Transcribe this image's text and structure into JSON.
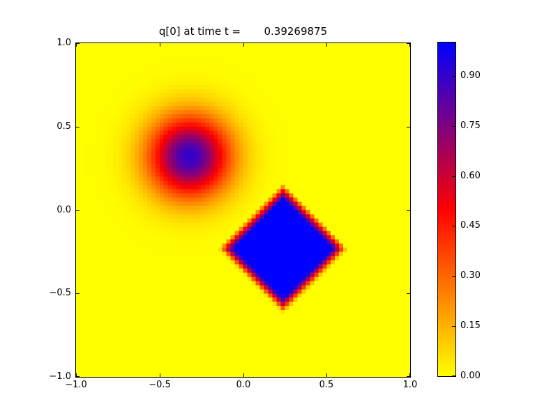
{
  "window": {
    "background_color": "#ffffff"
  },
  "chart_data": {
    "type": "heatmap",
    "title": "q[0] at time t =       0.39269875",
    "time_value": 0.39269875,
    "x_range": [
      -1.0,
      1.0
    ],
    "y_range": [
      -1.0,
      1.0
    ],
    "x_tick_values": [
      -1.0,
      -0.5,
      0.0,
      0.5,
      1.0
    ],
    "x_tick_labels": [
      "−1.0",
      "−0.5",
      "0.0",
      "0.5",
      "1.0"
    ],
    "y_tick_values": [
      1.0,
      0.5,
      0.0,
      -0.5,
      -1.0
    ],
    "y_tick_labels": [
      "1.0",
      "0.5",
      "0.0",
      "−0.5",
      "−1.0"
    ],
    "grid": {
      "nx": 80,
      "ny": 80
    },
    "background_value": 0.0,
    "features": [
      {
        "kind": "gaussian_hump",
        "center": [
          -0.32,
          0.32
        ],
        "sigma": 0.17,
        "amplitude": 0.9
      },
      {
        "kind": "diamond_patch",
        "center": [
          0.24,
          -0.23
        ],
        "inner_half_diagonal": 0.3,
        "outer_half_diagonal": 0.39,
        "value": 1.0
      }
    ],
    "colormap": {
      "name": "yellow-red-blue",
      "stops": [
        [
          0.0,
          "#ffff00"
        ],
        [
          0.5,
          "#ff0000"
        ],
        [
          1.0,
          "#0000ff"
        ]
      ]
    },
    "colorbar": {
      "min": 0.0,
      "max": 1.0,
      "tick_values": [
        0.0,
        0.15,
        0.3,
        0.45,
        0.6,
        0.75,
        0.9
      ],
      "tick_labels": [
        "0.00",
        "0.15",
        "0.30",
        "0.45",
        "0.60",
        "0.75",
        "0.90"
      ]
    },
    "frame_color": "#000000",
    "text_color": "#000000",
    "legend": "none",
    "grid_lines": "off"
  }
}
